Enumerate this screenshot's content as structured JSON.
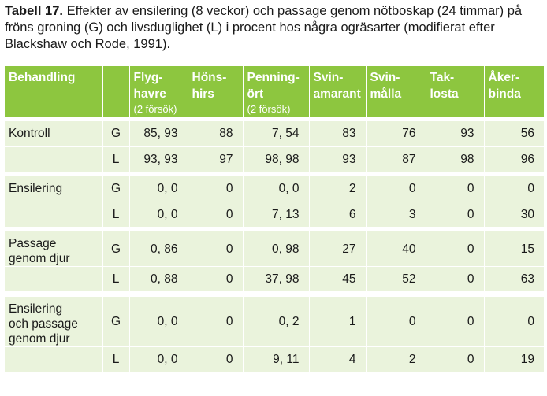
{
  "caption": {
    "label": "Tabell 17.",
    "text": " Effekter av ensilering (8 veckor) och passage genom nötboskap (24 timmar) på fröns groning (G) och livsduglighet (L) i procent hos några ogräsarter (modifierat efter Blackshaw och Rode, 1991)."
  },
  "headers": [
    {
      "main": "Behandling",
      "sub": ""
    },
    {
      "main": "",
      "sub": ""
    },
    {
      "main": "Flyg-\nhavre",
      "sub": "(2 försök)"
    },
    {
      "main": "Höns-\nhirs",
      "sub": ""
    },
    {
      "main": "Penning-\nört",
      "sub": "(2 försök)"
    },
    {
      "main": "Svin-\namarant",
      "sub": ""
    },
    {
      "main": "Svin-\nmålla",
      "sub": ""
    },
    {
      "main": "Tak-\nlosta",
      "sub": ""
    },
    {
      "main": "Åker-\nbinda",
      "sub": ""
    }
  ],
  "groups": [
    {
      "label": "Kontroll",
      "rows": [
        {
          "code": "G",
          "values": [
            "85, 93",
            "88",
            "7, 54",
            "83",
            "76",
            "93",
            "56"
          ]
        },
        {
          "code": "L",
          "values": [
            "93, 93",
            "97",
            "98, 98",
            "93",
            "87",
            "98",
            "96"
          ]
        }
      ]
    },
    {
      "label": "Ensilering",
      "rows": [
        {
          "code": "G",
          "values": [
            "0, 0",
            "0",
            "0, 0",
            "2",
            "0",
            "0",
            "0"
          ]
        },
        {
          "code": "L",
          "values": [
            "0, 0",
            "0",
            "7, 13",
            "6",
            "3",
            "0",
            "30"
          ]
        }
      ]
    },
    {
      "label": "Passage\ngenom djur",
      "rows": [
        {
          "code": "G",
          "values": [
            "0, 86",
            "0",
            "0, 98",
            "27",
            "40",
            "0",
            "15"
          ]
        },
        {
          "code": "L",
          "values": [
            "0, 88",
            "0",
            "37, 98",
            "45",
            "52",
            "0",
            "63"
          ]
        }
      ]
    },
    {
      "label": "Ensilering\noch passage\ngenom djur",
      "rows": [
        {
          "code": "G",
          "values": [
            "0, 0",
            "0",
            "0, 2",
            "1",
            "0",
            "0",
            "0"
          ]
        },
        {
          "code": "L",
          "values": [
            "0, 0",
            "0",
            "9, 11",
            "4",
            "2",
            "0",
            "19"
          ]
        }
      ]
    }
  ],
  "colors": {
    "header_bg": "#8dc63f",
    "cell_bg": "#eaf3dc"
  }
}
